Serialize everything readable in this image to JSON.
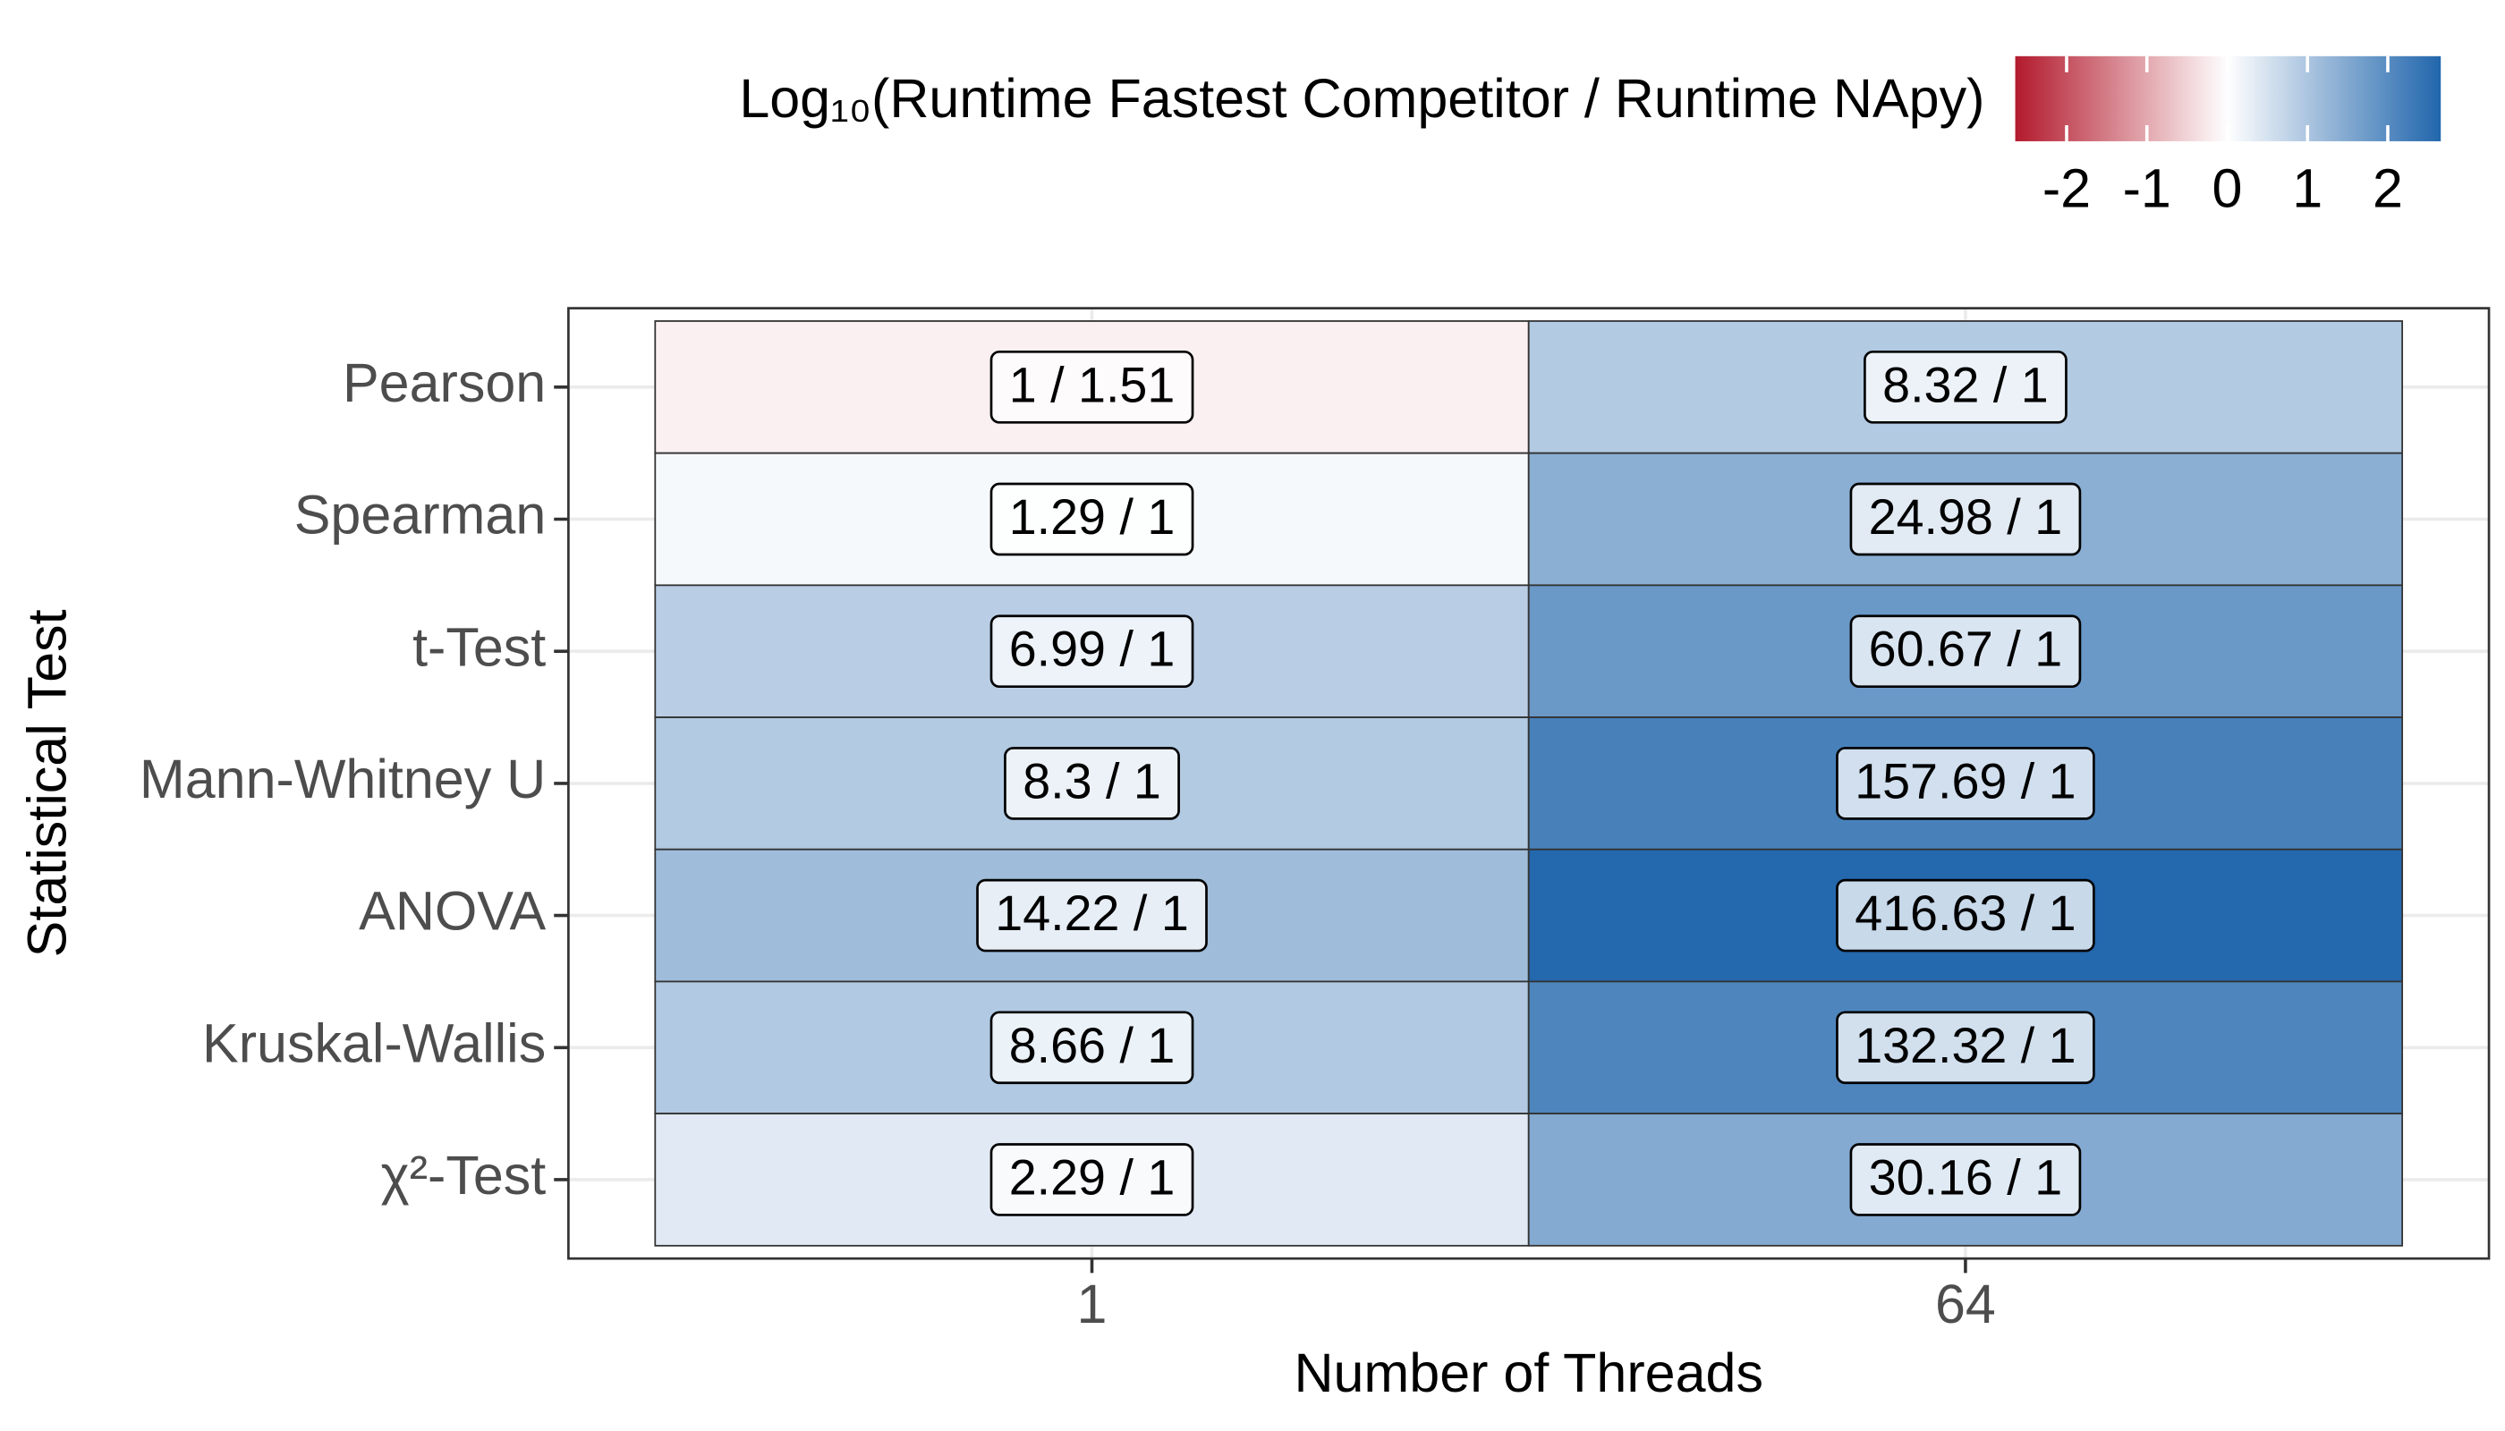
{
  "chart_data": {
    "type": "heatmap",
    "x_title": "Number of Threads",
    "y_title": "Statistical Test",
    "colorbar_title": "Log₁₀(Runtime Fastest Competitor / Runtime NApy)",
    "x_categories": [
      "1",
      "64"
    ],
    "y_categories": [
      "Pearson",
      "Spearman",
      "t-Test",
      "Mann-Whitney U",
      "ANOVA",
      "Kruskal-Wallis",
      "χ²-Test"
    ],
    "values": [
      [
        -0.179,
        0.92
      ],
      [
        0.111,
        1.398
      ],
      [
        0.844,
        1.783
      ],
      [
        0.919,
        2.198
      ],
      [
        1.153,
        2.62
      ],
      [
        0.938,
        2.122
      ],
      [
        0.36,
        1.479
      ]
    ],
    "value_labels": [
      [
        "1 / 1.51",
        "8.32 / 1"
      ],
      [
        "1.29 / 1",
        "24.98 / 1"
      ],
      [
        "6.99 / 1",
        "60.67 / 1"
      ],
      [
        "8.3 / 1",
        "157.69 / 1"
      ],
      [
        "14.22 / 1",
        "416.63 / 1"
      ],
      [
        "8.66 / 1",
        "132.32 / 1"
      ],
      [
        "2.29 / 1",
        "30.16 / 1"
      ]
    ],
    "colorlim": [
      -2.64,
      2.66
    ],
    "colorticks": [
      -2,
      -1,
      0,
      1,
      2
    ],
    "colors": [
      "#b2182b",
      "#ffffff",
      "#2166ac"
    ],
    "grid": true
  }
}
